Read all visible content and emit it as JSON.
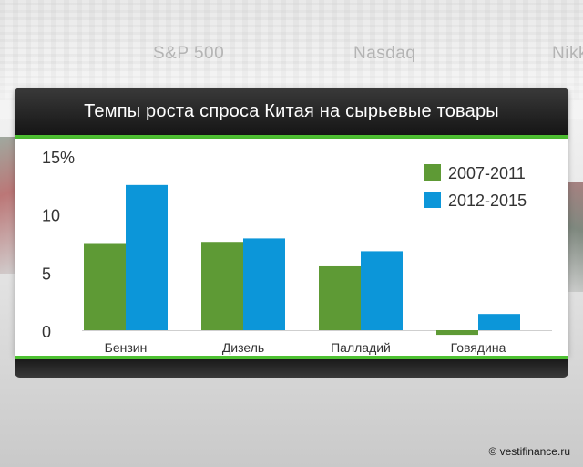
{
  "background": {
    "tickers": [
      "S&P 500",
      "Nasdaq",
      "Nikk"
    ]
  },
  "credit": "© vestifinance.ru",
  "colors": {
    "series1": "#5e9a35",
    "series2": "#0c96d9",
    "accent": "#4ec132",
    "axis": "#6e6e6e",
    "grid": "#dddddd",
    "text": "#333333"
  },
  "chart_data": {
    "type": "bar",
    "title": "Темпы роста спроса Китая на сырьевые товары",
    "xlabel": "",
    "ylabel": "",
    "categories": [
      "Бензин",
      "Дизель",
      "Палладий",
      "Говядина"
    ],
    "series": [
      {
        "name": "2007-2011",
        "values": [
          7.5,
          7.6,
          5.5,
          -0.4
        ]
      },
      {
        "name": "2012-2015",
        "values": [
          12.5,
          7.9,
          6.8,
          1.4
        ]
      }
    ],
    "ylim": [
      0,
      15
    ],
    "yticks": [
      "0",
      "5",
      "10",
      "15%"
    ],
    "yticks_values": [
      0,
      5,
      10,
      15
    ],
    "grid": false,
    "legend_position": "top-right"
  }
}
